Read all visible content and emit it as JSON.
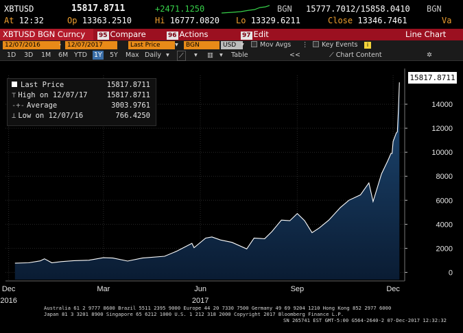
{
  "header": {
    "ticker": "XBTUSD",
    "last": "15817.8711",
    "change": "+2471.1250",
    "source": "BGN",
    "bid_ask": "15777.7012/15858.0410",
    "source2": "BGN",
    "at_label": "At",
    "at_value": "12:32",
    "open_label": "Op",
    "open_value": "13363.2510",
    "high_label": "Hi",
    "high_value": "16777.0820",
    "low_label": "Lo",
    "low_value": "13329.6211",
    "close_label": "Close",
    "close_value": "13346.7461",
    "va_label": "Va"
  },
  "command_bar": {
    "security": "XBTUSD BGN Curncy",
    "compare_num": "95",
    "compare": "Compare",
    "actions_num": "96",
    "actions": "Actions",
    "edit_num": "97",
    "edit": "Edit",
    "view": "Line Chart"
  },
  "toolbar": {
    "start_date": "12/07/2016",
    "end_date": "12/07/2017",
    "field": "Last Price",
    "source": "BGN",
    "currency": "USD",
    "mov_avgs": "Mov Avgs",
    "key_events": "Key Events",
    "key_events_badge": "i",
    "periods": [
      "1D",
      "3D",
      "1M",
      "6M",
      "YTD",
      "1Y",
      "5Y",
      "Max"
    ],
    "selected_period": "1Y",
    "frequency": "Daily",
    "table": "Table",
    "collapse": "<<",
    "chart_content": "Chart Content"
  },
  "legend": {
    "items": [
      {
        "label": "Last Price",
        "value": "15817.8711"
      },
      {
        "label": "High on 12/07/17",
        "value": "15817.8711"
      },
      {
        "label": "Average",
        "value": "3003.9761"
      },
      {
        "label": "Low on 12/07/16",
        "value": "766.4250"
      }
    ]
  },
  "last_price_tag": "15817.8711",
  "footer": {
    "line1": "Australia 61 2 9777 8600 Brazil 5511 2395 9000 Europe 44 20 7330 7500 Germany 49 69 9204 1210 Hong Kong 852 2977 6000",
    "line2": "Japan 81 3 3201 8900        Singapore 65 6212 1000        U.S. 1 212 318 2000        Copyright 2017 Bloomberg Finance L.P.",
    "line3": "SN 265741 EST  GMT-5:00 G564-2640-2 07-Dec-2017 12:32:32"
  },
  "colors": {
    "line": "#ffffff",
    "area_top": "#1f4b78",
    "area_bottom": "#0a1c33",
    "command_bar": "#9b1020",
    "accent_orange": "#e88a18",
    "change_green": "#37d24a"
  },
  "chart_data": {
    "type": "area",
    "title": "",
    "xlabel": "",
    "ylabel": "",
    "x_ticks": [
      {
        "label": "Dec",
        "sub": "2016",
        "date": "2016-12-01"
      },
      {
        "label": "Mar",
        "sub": "",
        "date": "2017-03-01"
      },
      {
        "label": "Jun",
        "sub": "2017",
        "date": "2017-06-01"
      },
      {
        "label": "Sep",
        "sub": "",
        "date": "2017-09-01"
      },
      {
        "label": "Dec",
        "sub": "",
        "date": "2017-12-01"
      }
    ],
    "y_ticks": [
      0,
      2000,
      4000,
      6000,
      8000,
      10000,
      12000,
      14000
    ],
    "ylim": [
      -600,
      16400
    ],
    "xlim": [
      "2016-11-28",
      "2017-12-12"
    ],
    "series": [
      {
        "values": [
          [
            "2016-12-07",
            766
          ],
          [
            "2016-12-20",
            800
          ],
          [
            "2016-12-31",
            960
          ],
          [
            "2017-01-04",
            1130
          ],
          [
            "2017-01-11",
            800
          ],
          [
            "2017-01-20",
            895
          ],
          [
            "2017-02-01",
            975
          ],
          [
            "2017-02-15",
            1010
          ],
          [
            "2017-03-01",
            1220
          ],
          [
            "2017-03-10",
            1190
          ],
          [
            "2017-03-24",
            940
          ],
          [
            "2017-04-07",
            1190
          ],
          [
            "2017-04-28",
            1340
          ],
          [
            "2017-05-10",
            1780
          ],
          [
            "2017-05-24",
            2420
          ],
          [
            "2017-05-26",
            2050
          ],
          [
            "2017-06-06",
            2850
          ],
          [
            "2017-06-12",
            2950
          ],
          [
            "2017-06-20",
            2700
          ],
          [
            "2017-07-01",
            2500
          ],
          [
            "2017-07-15",
            1950
          ],
          [
            "2017-07-22",
            2850
          ],
          [
            "2017-08-01",
            2800
          ],
          [
            "2017-08-08",
            3400
          ],
          [
            "2017-08-17",
            4350
          ],
          [
            "2017-08-25",
            4300
          ],
          [
            "2017-09-01",
            4900
          ],
          [
            "2017-09-08",
            4300
          ],
          [
            "2017-09-15",
            3300
          ],
          [
            "2017-09-22",
            3700
          ],
          [
            "2017-10-01",
            4350
          ],
          [
            "2017-10-12",
            5400
          ],
          [
            "2017-10-20",
            6000
          ],
          [
            "2017-10-31",
            6450
          ],
          [
            "2017-11-08",
            7450
          ],
          [
            "2017-11-12",
            5900
          ],
          [
            "2017-11-20",
            8200
          ],
          [
            "2017-11-26",
            9300
          ],
          [
            "2017-11-29",
            9900
          ],
          [
            "2017-11-30",
            9900
          ],
          [
            "2017-12-01",
            10900
          ],
          [
            "2017-12-04",
            11600
          ],
          [
            "2017-12-05",
            11700
          ],
          [
            "2017-12-06",
            13500
          ],
          [
            "2017-12-07",
            15818
          ]
        ]
      }
    ]
  }
}
